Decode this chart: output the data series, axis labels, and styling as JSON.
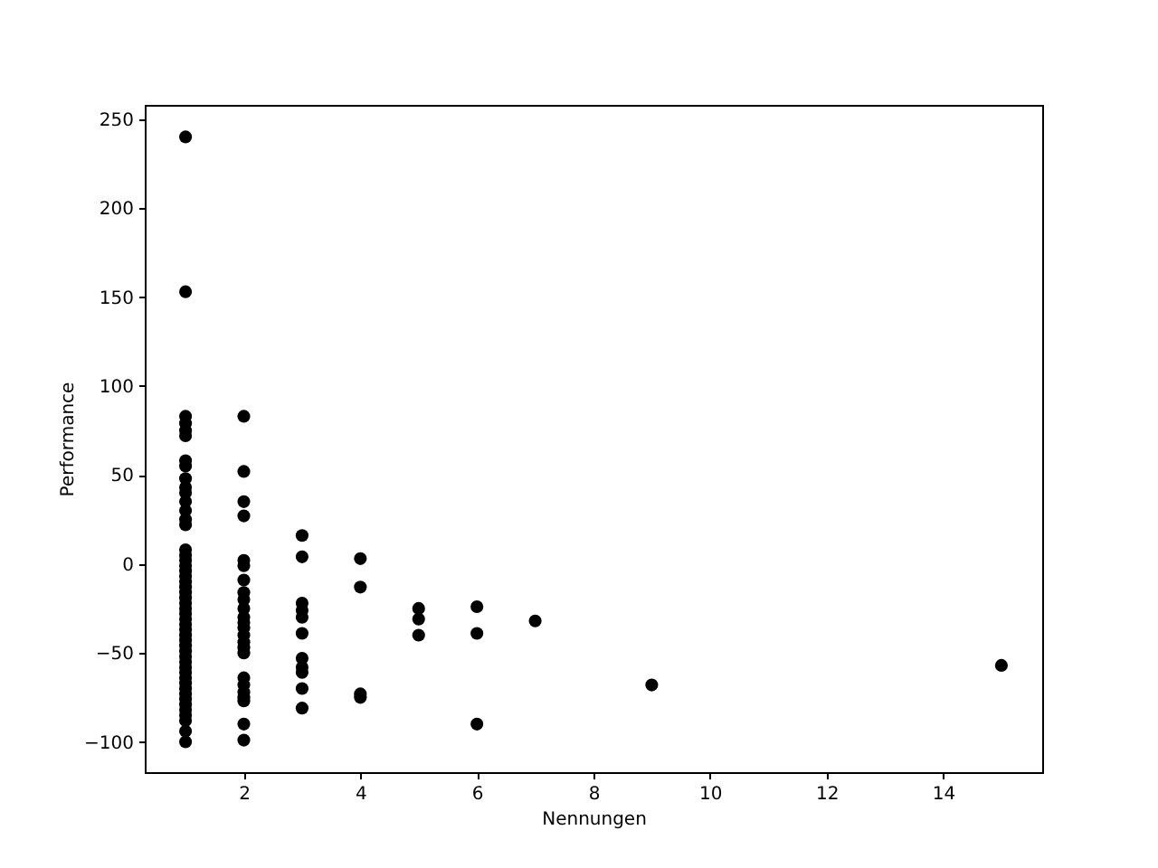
{
  "chart_data": {
    "type": "scatter",
    "xlabel": "Nennungen",
    "ylabel": "Performance",
    "marker": "circle",
    "grid": false,
    "xlim": [
      0.3,
      15.7
    ],
    "ylim": [
      -117,
      258
    ],
    "xticks": [
      2,
      4,
      6,
      8,
      10,
      12,
      14
    ],
    "yticks": [
      -100,
      -50,
      0,
      50,
      100,
      150,
      200,
      250
    ],
    "series": [
      {
        "color": "#000000",
        "x": [
          1,
          1,
          1,
          1,
          1,
          1,
          1,
          1,
          1,
          1,
          1,
          1,
          1,
          1,
          1,
          1,
          1,
          1,
          1,
          1,
          1,
          1,
          1,
          1,
          1,
          1,
          1,
          1,
          1,
          1,
          1,
          1,
          1,
          1,
          1,
          1,
          1,
          1,
          1,
          1,
          1,
          1,
          1,
          1,
          1,
          1,
          1,
          1,
          1,
          1,
          2,
          2,
          2,
          2,
          2,
          2,
          2,
          2,
          2,
          2,
          2,
          2,
          2,
          2,
          2,
          2,
          2,
          2,
          2,
          2,
          2,
          2,
          2,
          2,
          3,
          3,
          3,
          3,
          3,
          3,
          3,
          3,
          3,
          3,
          3,
          4,
          4,
          4,
          4,
          5,
          5,
          5,
          6,
          6,
          6,
          7,
          9,
          15
        ],
        "values": [
          240,
          153,
          83,
          79,
          75,
          72,
          58,
          55,
          48,
          43,
          40,
          35,
          30,
          25,
          22,
          8,
          5,
          2,
          -1,
          -4,
          -7,
          -10,
          -13,
          -16,
          -19,
          -22,
          -25,
          -28,
          -31,
          -34,
          -37,
          -40,
          -43,
          -46,
          -49,
          -52,
          -55,
          -58,
          -61,
          -64,
          -67,
          -70,
          -73,
          -76,
          -79,
          -82,
          -85,
          -88,
          -94,
          -100,
          83,
          52,
          35,
          27,
          2,
          -1,
          -9,
          -16,
          -20,
          -25,
          -30,
          -33,
          -36,
          -40,
          -44,
          -47,
          -50,
          -64,
          -68,
          -72,
          -75,
          -77,
          -90,
          -99,
          16,
          4,
          -22,
          -26,
          -30,
          -39,
          -53,
          -58,
          -61,
          -70,
          -81,
          3,
          -13,
          -73,
          -75,
          -25,
          -31,
          -40,
          -24,
          -39,
          -90,
          -32,
          -68,
          -57
        ]
      }
    ]
  }
}
